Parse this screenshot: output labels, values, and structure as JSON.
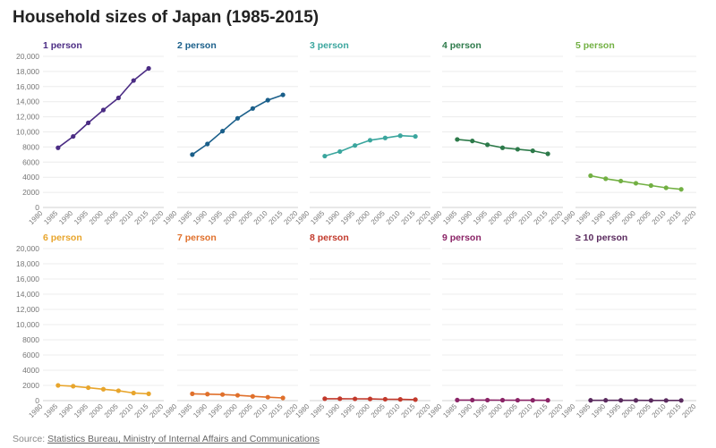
{
  "chart": {
    "title": "Household sizes of Japan (1985-2015)"
  },
  "source": {
    "label": "Source:",
    "link_text": "Statistics Bureau, Ministry of Internal Affairs and Communications"
  },
  "chart_data": {
    "type": "line",
    "layout": "small-multiples",
    "title": "Household sizes of Japan (1985-2015)",
    "x": [
      1985,
      1990,
      1995,
      2000,
      2005,
      2010,
      2015
    ],
    "xlim": [
      1980,
      2020
    ],
    "xticks": [
      "1980",
      "1985",
      "1990",
      "1995",
      "2000",
      "2005",
      "2010",
      "2015",
      "2020"
    ],
    "ylim": [
      0,
      20000
    ],
    "yticks": [
      "0",
      "2000",
      "4000",
      "6000",
      "8000",
      "10,000",
      "12,000",
      "14,000",
      "16,000",
      "18,000",
      "20,000"
    ],
    "grid": true,
    "series": [
      {
        "name": "1 person",
        "color": "#4b2c84",
        "values": [
          7900,
          9400,
          11200,
          12900,
          14500,
          16800,
          18400
        ]
      },
      {
        "name": "2 person",
        "color": "#1a5f8a",
        "values": [
          7000,
          8400,
          10100,
          11800,
          13100,
          14200,
          14900
        ]
      },
      {
        "name": "3 person",
        "color": "#3ba69e",
        "values": [
          6800,
          7400,
          8200,
          8900,
          9200,
          9500,
          9400
        ]
      },
      {
        "name": "4 person",
        "color": "#2d7a4a",
        "values": [
          9000,
          8800,
          8300,
          7900,
          7700,
          7500,
          7100
        ]
      },
      {
        "name": "5 person",
        "color": "#72b043",
        "values": [
          4200,
          3800,
          3500,
          3200,
          2900,
          2600,
          2400
        ]
      },
      {
        "name": "6 person",
        "color": "#e8a52c",
        "values": [
          2000,
          1900,
          1700,
          1500,
          1300,
          1000,
          900
        ]
      },
      {
        "name": "7 person",
        "color": "#e0702b",
        "values": [
          900,
          850,
          800,
          700,
          560,
          450,
          350
        ]
      },
      {
        "name": "8 person",
        "color": "#c2392b",
        "values": [
          250,
          250,
          230,
          220,
          180,
          160,
          130
        ]
      },
      {
        "name": "9 person",
        "color": "#8a2366",
        "values": [
          70,
          70,
          65,
          60,
          50,
          45,
          40
        ]
      },
      {
        "name": "≥ 10 person",
        "color": "#5a2a5e",
        "values": [
          40,
          40,
          35,
          30,
          25,
          22,
          20
        ]
      }
    ]
  }
}
